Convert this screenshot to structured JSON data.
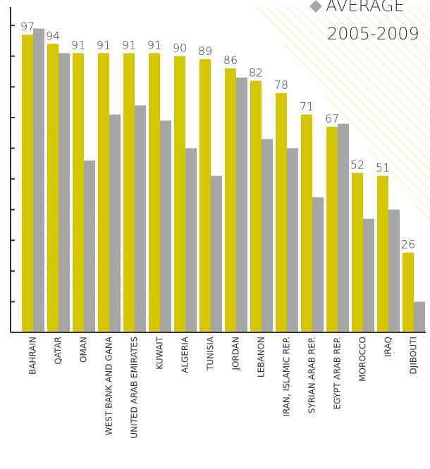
{
  "chart_data": {
    "type": "bar",
    "categories": [
      "BAHRAIN",
      "QATAR",
      "OMAN",
      "WEST BANK AND GANA",
      "UNITED ARAB EMIRATES",
      "KUWAIT",
      "ALGERIA",
      "TUNISIA",
      "JORDAN",
      "LEBANON",
      "IRAN, ISLAMIC REP.",
      "SYRIAN ARAB REP.",
      "EGYPT ARAB REP.",
      "MOROCCO",
      "IRAQ",
      "DJIBOUTI"
    ],
    "series": [
      {
        "color": "#d4c600",
        "values": [
          97,
          94,
          91,
          91,
          91,
          91,
          90,
          89,
          86,
          82,
          78,
          71,
          67,
          52,
          51,
          26
        ]
      },
      {
        "name": "AVERAGE",
        "color": "#a6a6a6",
        "values": [
          99,
          91,
          56,
          71,
          74,
          69,
          60,
          51,
          83,
          63,
          60,
          44,
          68,
          37,
          40,
          10
        ]
      }
    ],
    "legend_note": "2005-2009",
    "ylim": [
      0,
      106
    ],
    "yticks": [
      0,
      10,
      20,
      30,
      40,
      50,
      60,
      70,
      80,
      90,
      100
    ]
  }
}
